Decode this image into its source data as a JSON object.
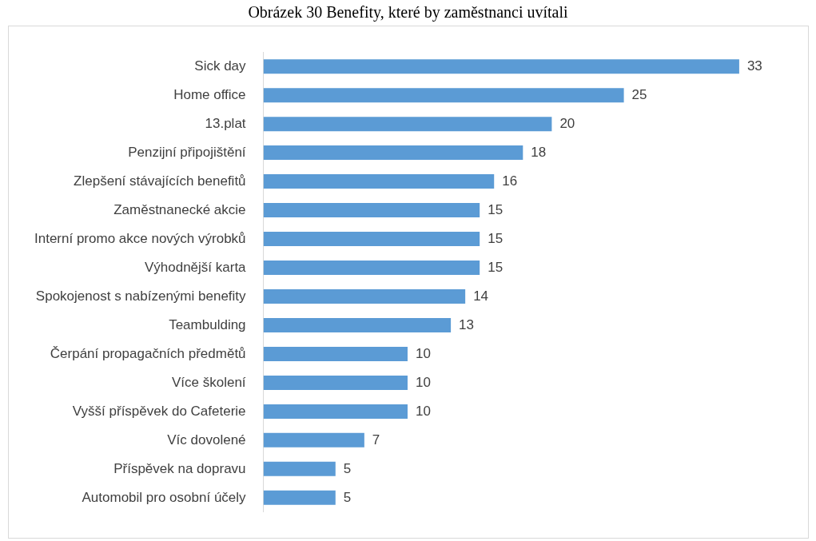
{
  "chart_data": {
    "type": "bar",
    "orientation": "horizontal",
    "title": "Obrázek 30 Benefity, které by zaměstnanci uvítali",
    "categories": [
      "Sick day",
      "Home office",
      "13.plat",
      "Penzijní připojištění",
      "Zlepšení stávajících benefitů",
      "Zaměstnanecké akcie",
      "Interní promo akce nových výrobků",
      "Výhodnější karta",
      "Spokojenost s nabízenými benefity",
      "Teambulding",
      "Čerpání propagačních předmětů",
      "Více školení",
      "Vyšší příspěvek do Cafeterie",
      "Víc dovolené",
      "Příspěvek na dopravu",
      "Automobil pro osobní účely"
    ],
    "values": [
      33,
      25,
      20,
      18,
      16,
      15,
      15,
      15,
      14,
      13,
      10,
      10,
      10,
      7,
      5,
      5
    ],
    "color": "#5b9bd5",
    "data_labels": true,
    "grid": false,
    "legend": false,
    "tick_labels": "y"
  }
}
